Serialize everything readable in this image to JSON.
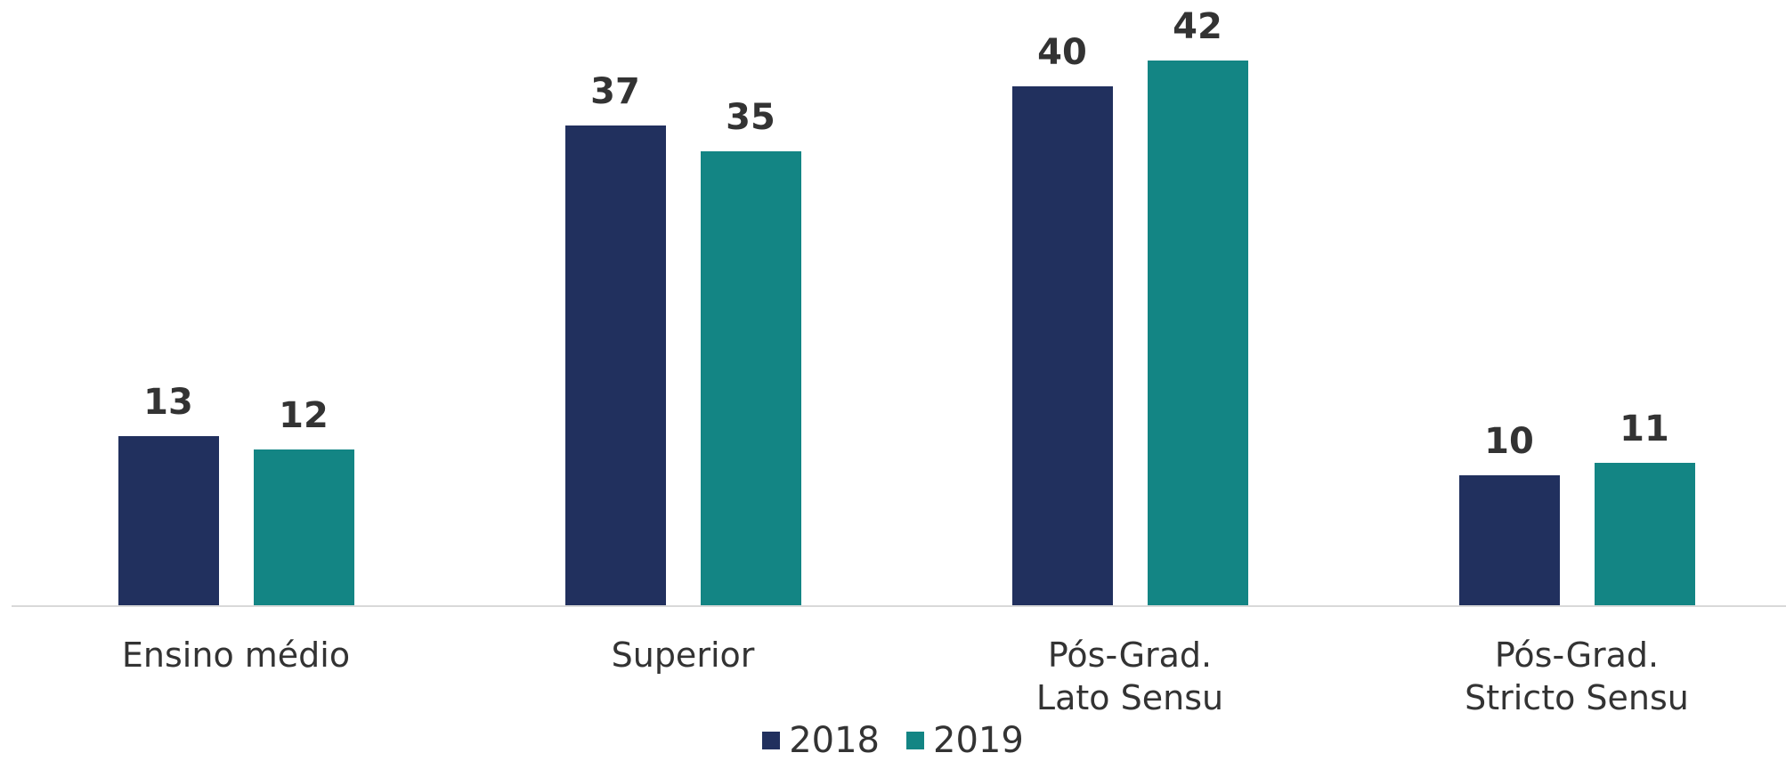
{
  "chart_data": {
    "type": "bar",
    "categories": [
      "Ensino médio",
      "Superior",
      "Pós-Grad.\nLato Sensu",
      "Pós-Grad.\nStricto Sensu"
    ],
    "series": [
      {
        "name": "2018",
        "color": "#21305e",
        "values": [
          13,
          37,
          40,
          10
        ]
      },
      {
        "name": "2019",
        "color": "#138584",
        "values": [
          12,
          35,
          42,
          11
        ]
      }
    ],
    "legend": "bottom"
  }
}
